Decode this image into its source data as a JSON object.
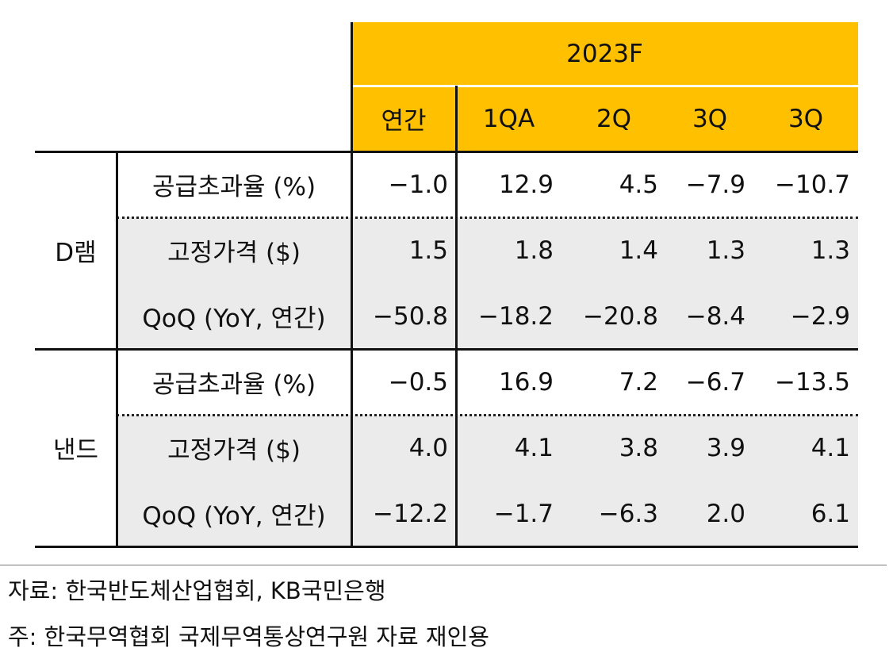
{
  "header": {
    "title": "2023F",
    "columns": [
      "연간",
      "1QA",
      "2Q",
      "3Q",
      "3Q"
    ]
  },
  "groups": [
    {
      "name": "D램",
      "rows": [
        {
          "label": "공급초과율 (%)",
          "values": [
            "−1.0",
            "12.9",
            "4.5",
            "−7.9",
            "−10.7"
          ]
        },
        {
          "label": "고정가격 ($)",
          "values": [
            "1.5",
            "1.8",
            "1.4",
            "1.3",
            "1.3"
          ]
        },
        {
          "label": "QoQ (YoY, 연간)",
          "values": [
            "−50.8",
            "−18.2",
            "−20.8",
            "−8.4",
            "−2.9"
          ]
        }
      ]
    },
    {
      "name": "낸드",
      "rows": [
        {
          "label": "공급초과율 (%)",
          "values": [
            "−0.5",
            "16.9",
            "7.2",
            "−6.7",
            "−13.5"
          ]
        },
        {
          "label": "고정가격 ($)",
          "values": [
            "4.0",
            "4.1",
            "3.8",
            "3.9",
            "4.1"
          ]
        },
        {
          "label": "QoQ (YoY, 연간)",
          "values": [
            "−12.2",
            "−1.7",
            "−6.3",
            "2.0",
            "6.1"
          ]
        }
      ]
    }
  ],
  "notes": [
    "자료: 한국반도체산업협회, KB국민은행",
    "주: 한국무역협회 국제무역통상연구원 자료 재인용"
  ]
}
